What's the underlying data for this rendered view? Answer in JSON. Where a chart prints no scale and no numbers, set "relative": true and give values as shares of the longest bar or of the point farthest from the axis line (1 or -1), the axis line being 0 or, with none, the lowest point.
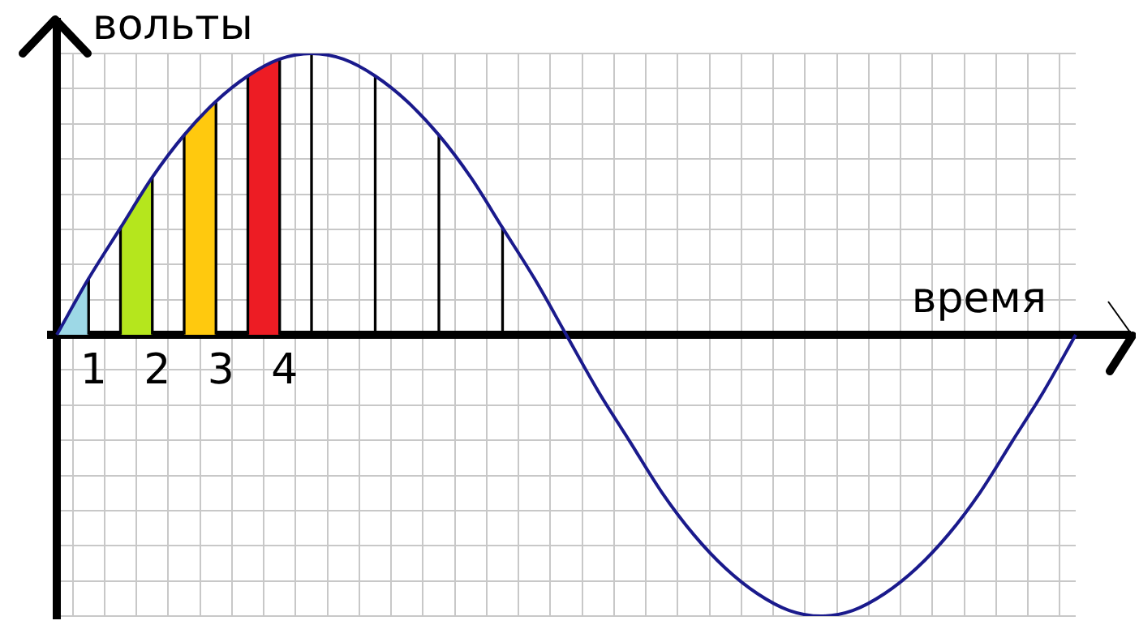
{
  "chart_data": {
    "type": "line",
    "xlabel": "время",
    "ylabel": "вольты",
    "relative": true,
    "grid": true,
    "legend": false,
    "marker": "none",
    "categories": [
      null,
      "1",
      null,
      "2",
      null,
      "3",
      null,
      "4",
      null,
      null,
      null,
      null,
      null,
      null,
      null,
      null,
      null,
      null,
      null,
      null,
      null,
      null,
      null,
      null,
      null,
      null,
      null,
      null,
      null,
      null,
      null,
      null,
      null
    ],
    "series": [
      {
        "type": "area",
        "color": "#9dd8e6",
        "values": [
          0,
          0.2,
          null,
          null,
          null,
          null,
          null,
          null,
          null,
          null,
          null,
          null,
          null,
          null,
          null,
          null,
          null,
          null,
          null,
          null,
          null,
          null,
          null,
          null,
          null,
          null,
          null,
          null,
          null,
          null,
          null,
          null,
          null
        ]
      },
      {
        "type": "area",
        "color": "#b5e61d",
        "values": [
          null,
          null,
          0.38,
          0.56,
          null,
          null,
          null,
          null,
          null,
          null,
          null,
          null,
          null,
          null,
          null,
          null,
          null,
          null,
          null,
          null,
          null,
          null,
          null,
          null,
          null,
          null,
          null,
          null,
          null,
          null,
          null,
          null,
          null
        ]
      },
      {
        "type": "area",
        "color": "#ffc90e",
        "values": [
          null,
          null,
          null,
          null,
          0.71,
          0.83,
          null,
          null,
          null,
          null,
          null,
          null,
          null,
          null,
          null,
          null,
          null,
          null,
          null,
          null,
          null,
          null,
          null,
          null,
          null,
          null,
          null,
          null,
          null,
          null,
          null,
          null,
          null
        ]
      },
      {
        "type": "area",
        "color": "#ed1c24",
        "values": [
          null,
          null,
          null,
          null,
          null,
          null,
          0.92,
          0.98,
          null,
          null,
          null,
          null,
          null,
          null,
          null,
          null,
          null,
          null,
          null,
          null,
          null,
          null,
          null,
          null,
          null,
          null,
          null,
          null,
          null,
          null,
          null,
          null,
          null
        ]
      },
      {
        "type": "bar",
        "color": "#000000",
        "values": [
          null,
          0.2,
          0.38,
          0.56,
          0.71,
          0.83,
          0.92,
          0.98,
          1,
          null,
          0.92,
          null,
          0.71,
          null,
          0.38,
          null,
          null,
          null,
          null,
          null,
          null,
          null,
          null,
          null,
          null,
          null,
          null,
          null,
          null,
          null,
          null,
          null,
          null
        ]
      },
      {
        "color": "#1a1a8c",
        "values": [
          0,
          0.2,
          0.38,
          0.56,
          0.71,
          0.83,
          0.92,
          0.98,
          1,
          0.98,
          0.92,
          0.83,
          0.71,
          0.56,
          0.38,
          0.2,
          0,
          -0.2,
          -0.38,
          -0.56,
          -0.71,
          -0.83,
          -0.92,
          -0.98,
          -1,
          -0.98,
          -0.92,
          -0.83,
          -0.71,
          -0.56,
          -0.38,
          -0.2,
          0
        ]
      }
    ]
  }
}
